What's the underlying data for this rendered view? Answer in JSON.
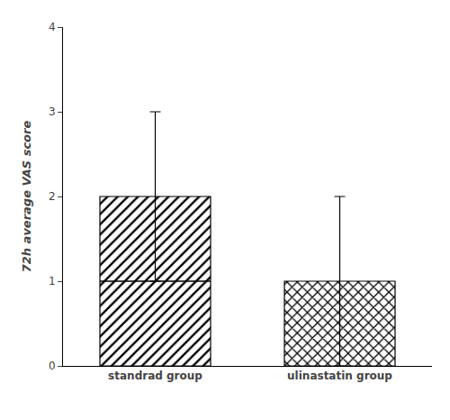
{
  "chart_data": {
    "type": "bar",
    "categories": [
      "standrad group",
      "ulinastatin group"
    ],
    "values": [
      2.0,
      1.0
    ],
    "error_lo": [
      1.0,
      1.0
    ],
    "error_hi": [
      1.0,
      1.0
    ],
    "medians": [
      1.0,
      null
    ],
    "ylabel": "72h average VAS score",
    "ylim": [
      0,
      4
    ],
    "yticks": [
      0,
      1,
      2,
      3,
      4
    ],
    "color": "#ffffff",
    "grid": false
  }
}
